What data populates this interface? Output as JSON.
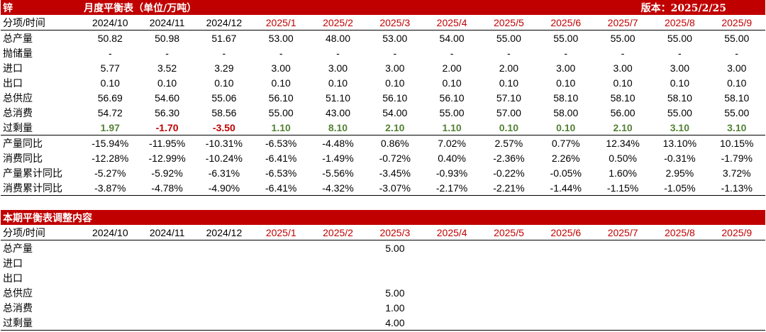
{
  "balance": {
    "metal": "锌",
    "title": "月度平衡表（单位/万吨）",
    "version_label": "版本：",
    "version_date": "2025/2/25",
    "header_label": "分项/时间",
    "periods": [
      {
        "label": "2024/10",
        "future": false
      },
      {
        "label": "2024/11",
        "future": false
      },
      {
        "label": "2024/12",
        "future": false
      },
      {
        "label": "2025/1",
        "future": true
      },
      {
        "label": "2025/2",
        "future": true
      },
      {
        "label": "2025/3",
        "future": true
      },
      {
        "label": "2025/4",
        "future": true
      },
      {
        "label": "2025/5",
        "future": true
      },
      {
        "label": "2025/6",
        "future": true
      },
      {
        "label": "2025/7",
        "future": true
      },
      {
        "label": "2025/8",
        "future": true
      },
      {
        "label": "2025/9",
        "future": true
      }
    ],
    "rows": [
      {
        "label": "总产量",
        "values": [
          "50.82",
          "50.98",
          "51.67",
          "53.00",
          "48.00",
          "53.00",
          "54.00",
          "55.00",
          "55.00",
          "55.00",
          "55.00",
          "55.00"
        ]
      },
      {
        "label": "抛储量",
        "values": [
          "-",
          "-",
          "-",
          "-",
          "-",
          "-",
          "-",
          "-",
          "-",
          "-",
          "-",
          "-"
        ]
      },
      {
        "label": "进口",
        "values": [
          "5.77",
          "3.52",
          "3.29",
          "3.00",
          "3.00",
          "3.00",
          "2.00",
          "2.00",
          "3.00",
          "3.00",
          "3.00",
          "3.00"
        ]
      },
      {
        "label": "出口",
        "values": [
          "0.10",
          "0.10",
          "0.10",
          "0.10",
          "0.10",
          "0.10",
          "0.10",
          "0.10",
          "0.10",
          "0.10",
          "0.10",
          "0.10"
        ]
      },
      {
        "label": "总供应",
        "values": [
          "56.69",
          "54.60",
          "55.06",
          "56.10",
          "51.10",
          "56.10",
          "56.10",
          "57.10",
          "58.10",
          "58.10",
          "58.10",
          "58.10"
        ]
      },
      {
        "label": "总消费",
        "values": [
          "54.72",
          "56.30",
          "58.56",
          "55.00",
          "43.00",
          "54.00",
          "55.00",
          "57.00",
          "58.00",
          "56.00",
          "55.00",
          "55.00"
        ]
      },
      {
        "label": "过剩量",
        "surplus": true,
        "values": [
          "1.97",
          "-1.70",
          "-3.50",
          "1.10",
          "8.10",
          "2.10",
          "1.10",
          "0.10",
          "0.10",
          "2.10",
          "3.10",
          "3.10"
        ]
      }
    ],
    "pct_rows": [
      {
        "label": "产量同比",
        "values": [
          "-15.94%",
          "-11.95%",
          "-10.31%",
          "-6.53%",
          "-4.48%",
          "0.86%",
          "7.02%",
          "2.57%",
          "0.77%",
          "12.34%",
          "13.10%",
          "10.15%"
        ]
      },
      {
        "label": "消费同比",
        "values": [
          "-12.28%",
          "-12.99%",
          "-10.24%",
          "-6.41%",
          "-1.49%",
          "-0.72%",
          "0.40%",
          "-2.36%",
          "2.26%",
          "0.50%",
          "-0.31%",
          "-1.79%"
        ]
      },
      {
        "label": "产量累计同比",
        "values": [
          "-5.27%",
          "-5.92%",
          "-6.31%",
          "-6.53%",
          "-5.56%",
          "-3.45%",
          "-0.93%",
          "-0.22%",
          "-0.05%",
          "1.60%",
          "2.95%",
          "3.72%"
        ]
      },
      {
        "label": "消费累计同比",
        "values": [
          "-3.87%",
          "-4.78%",
          "-4.90%",
          "-6.41%",
          "-4.32%",
          "-3.07%",
          "-2.17%",
          "-2.21%",
          "-1.44%",
          "-1.15%",
          "-1.05%",
          "-1.13%"
        ]
      }
    ]
  },
  "adjustments": {
    "title": "本期平衡表调整内容",
    "header_label": "分项/时间",
    "rows": [
      {
        "label": "总产量",
        "values": [
          "",
          "",
          "",
          "",
          "",
          "5.00",
          "",
          "",
          "",
          "",
          "",
          ""
        ]
      },
      {
        "label": "进口",
        "values": [
          "",
          "",
          "",
          "",
          "",
          "",
          "",
          "",
          "",
          "",
          "",
          ""
        ]
      },
      {
        "label": "出口",
        "values": [
          "",
          "",
          "",
          "",
          "",
          "",
          "",
          "",
          "",
          "",
          "",
          ""
        ]
      },
      {
        "label": "总供应",
        "values": [
          "",
          "",
          "",
          "",
          "",
          "5.00",
          "",
          "",
          "",
          "",
          "",
          ""
        ]
      },
      {
        "label": "总消费",
        "values": [
          "",
          "",
          "",
          "",
          "",
          "1.00",
          "",
          "",
          "",
          "",
          "",
          ""
        ]
      },
      {
        "label": "过剩量",
        "values": [
          "",
          "",
          "",
          "",
          "",
          "4.00",
          "",
          "",
          "",
          "",
          "",
          ""
        ]
      }
    ]
  }
}
